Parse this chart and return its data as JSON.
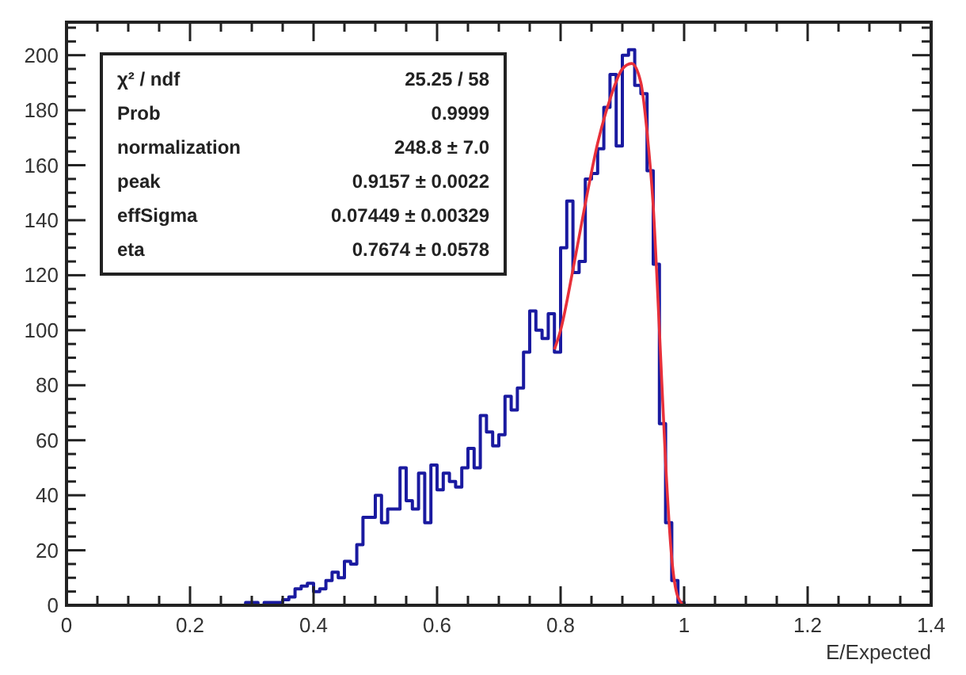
{
  "chart_data": {
    "type": "histogram",
    "xlabel": "E/Expected",
    "series": [
      {
        "color": "#1a1aa0",
        "bins": [
          0.29,
          0.3,
          0.31,
          0.32,
          0.33,
          0.34,
          0.35,
          0.36,
          0.37,
          0.38,
          0.39,
          0.4,
          0.41,
          0.42,
          0.43,
          0.44,
          0.45,
          0.46,
          0.47,
          0.48,
          0.49,
          0.5,
          0.51,
          0.52,
          0.53,
          0.54,
          0.55,
          0.56,
          0.57,
          0.58,
          0.59,
          0.6,
          0.61,
          0.62,
          0.63,
          0.64,
          0.65,
          0.66,
          0.67,
          0.68,
          0.69,
          0.7,
          0.71,
          0.72,
          0.73,
          0.74,
          0.75,
          0.76,
          0.77,
          0.78,
          0.79,
          0.8,
          0.81,
          0.82,
          0.83,
          0.84,
          0.85,
          0.86,
          0.87,
          0.88,
          0.89,
          0.9,
          0.91,
          0.92,
          0.93,
          0.94,
          0.95,
          0.96,
          0.97,
          0.98,
          0.99,
          1.0,
          1.01
        ],
        "values": [
          1,
          1,
          0,
          1,
          1,
          1,
          2,
          3,
          6,
          7,
          8,
          5,
          6,
          9,
          12,
          10,
          16,
          15,
          22,
          32,
          32,
          40,
          30,
          35,
          35,
          50,
          38,
          35,
          48,
          30,
          51,
          42,
          48,
          45,
          43,
          50,
          57,
          50,
          69,
          63,
          58,
          62,
          76,
          71,
          79,
          92,
          107,
          100,
          97,
          106,
          92,
          130,
          147,
          121,
          125,
          155,
          157,
          166,
          181,
          193,
          167,
          200,
          202,
          189,
          186,
          158,
          124,
          66,
          30,
          9,
          1,
          0
        ]
      },
      {
        "type": "line",
        "color": "#e8303a",
        "x": [
          0.79,
          0.8,
          0.82,
          0.84,
          0.86,
          0.88,
          0.9,
          0.915,
          0.93,
          0.94,
          0.95,
          0.96,
          0.97,
          0.98,
          0.99,
          1.0
        ],
        "values": [
          93,
          100,
          122,
          146,
          168,
          184,
          195,
          197,
          190,
          172,
          145,
          100,
          52,
          17,
          3,
          0
        ]
      }
    ],
    "xlim": [
      0,
      1.4
    ],
    "ylim": [
      0,
      212
    ],
    "xticks": [
      0,
      {
        "value": 0.05,
        "label": null
      },
      {
        "value": 0.1,
        "label": null
      },
      {
        "value": 0.15,
        "label": null
      },
      0.2,
      {
        "value": 0.25,
        "label": null
      },
      {
        "value": 0.3,
        "label": null
      },
      {
        "value": 0.35,
        "label": null
      },
      0.4,
      {
        "value": 0.45,
        "label": null
      },
      {
        "value": 0.5,
        "label": null
      },
      {
        "value": 0.55,
        "label": null
      },
      0.6,
      {
        "value": 0.65,
        "label": null
      },
      {
        "value": 0.7,
        "label": null
      },
      {
        "value": 0.75,
        "label": null
      },
      0.8,
      {
        "value": 0.85,
        "label": null
      },
      {
        "value": 0.9,
        "label": null
      },
      {
        "value": 0.95,
        "label": null
      },
      1,
      {
        "value": 1.05,
        "label": null
      },
      {
        "value": 1.1,
        "label": null
      },
      {
        "value": 1.15,
        "label": null
      },
      1.2,
      {
        "value": 1.25,
        "label": null
      },
      {
        "value": 1.3,
        "label": null
      },
      {
        "value": 1.35,
        "label": null
      },
      1.4
    ],
    "yticks": [
      0,
      {
        "value": 5,
        "label": null
      },
      {
        "value": 10,
        "label": null
      },
      {
        "value": 15,
        "label": null
      },
      20,
      {
        "value": 25,
        "label": null
      },
      {
        "value": 30,
        "label": null
      },
      {
        "value": 35,
        "label": null
      },
      40,
      {
        "value": 45,
        "label": null
      },
      {
        "value": 50,
        "label": null
      },
      {
        "value": 55,
        "label": null
      },
      60,
      {
        "value": 65,
        "label": null
      },
      {
        "value": 70,
        "label": null
      },
      {
        "value": 75,
        "label": null
      },
      80,
      {
        "value": 85,
        "label": null
      },
      {
        "value": 90,
        "label": null
      },
      {
        "value": 95,
        "label": null
      },
      100,
      {
        "value": 105,
        "label": null
      },
      {
        "value": 110,
        "label": null
      },
      {
        "value": 115,
        "label": null
      },
      120,
      {
        "value": 125,
        "label": null
      },
      {
        "value": 130,
        "label": null
      },
      {
        "value": 135,
        "label": null
      },
      140,
      {
        "value": 145,
        "label": null
      },
      {
        "value": 150,
        "label": null
      },
      {
        "value": 155,
        "label": null
      },
      160,
      {
        "value": 165,
        "label": null
      },
      {
        "value": 170,
        "label": null
      },
      {
        "value": 175,
        "label": null
      },
      180,
      {
        "value": 185,
        "label": null
      },
      {
        "value": 190,
        "label": null
      },
      {
        "value": 195,
        "label": null
      },
      200,
      {
        "value": 205,
        "label": null
      },
      {
        "value": 210,
        "label": null
      }
    ],
    "annotations": [
      "χ² / ndf",
      "25.25 / 58",
      "Prob",
      "0.9999",
      "normalization",
      "248.8 ± 7.0",
      "peak",
      "0.9157 ± 0.0022",
      "effSigma",
      "0.07449 ± 0.00329",
      "eta",
      "0.7674 ± 0.0578"
    ]
  }
}
